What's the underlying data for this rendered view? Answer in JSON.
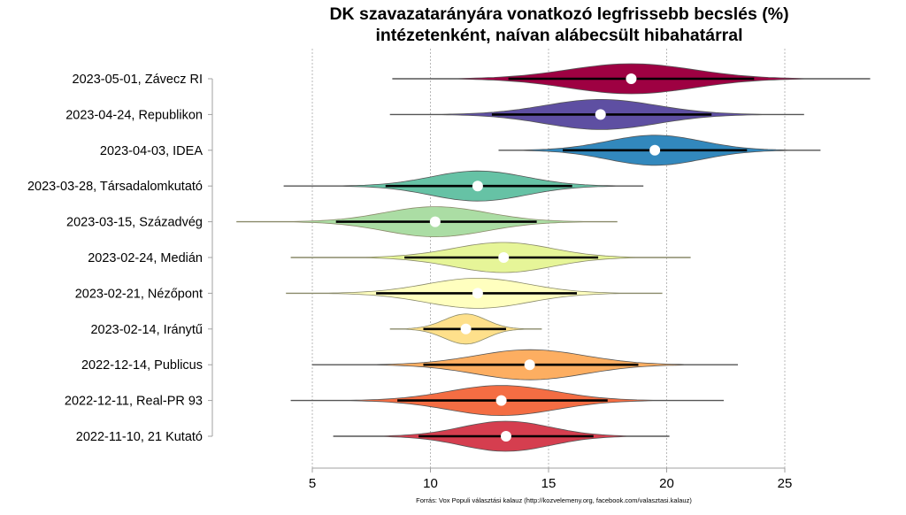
{
  "chart_data": {
    "type": "violin",
    "title": "DK szavazatarányára vonatkozó legfrissebb becslés (%)",
    "subtitle": "intézetenként, naívan alábecsült hibahatárral",
    "xlabel": "",
    "ylabel": "",
    "xlim": [
      5,
      25
    ],
    "xticks": [
      5,
      10,
      15,
      20,
      25
    ],
    "grid": "vertical dashed at x ticks",
    "legend": "none",
    "caption": "Forrás: Vox Populi választási kalauz (http://kozvelemeny.org, facebook.com/valasztasi.kalauz)",
    "series": [
      {
        "label": "2023-05-01, Závecz RI",
        "estimate": 18.5,
        "ci_low": 13.3,
        "ci_high": 23.7,
        "min": 8.4,
        "max": 28.6,
        "color": "#9E0142"
      },
      {
        "label": "2023-04-24, Republikon",
        "estimate": 17.2,
        "ci_low": 12.6,
        "ci_high": 21.9,
        "min": 8.3,
        "max": 25.8,
        "color": "#5E4FA2"
      },
      {
        "label": "2023-04-03, IDEA",
        "estimate": 19.5,
        "ci_low": 15.6,
        "ci_high": 23.4,
        "min": 12.9,
        "max": 26.5,
        "color": "#3288BD"
      },
      {
        "label": "2023-03-28, Társadalomkutató",
        "estimate": 12.0,
        "ci_low": 8.1,
        "ci_high": 16.0,
        "min": 3.8,
        "max": 19.0,
        "color": "#66C2A5"
      },
      {
        "label": "2023-03-15, Századvég",
        "estimate": 10.2,
        "ci_low": 6.0,
        "ci_high": 14.5,
        "min": 1.8,
        "max": 17.9,
        "color": "#ABDDA4"
      },
      {
        "label": "2023-02-24, Medián",
        "estimate": 13.1,
        "ci_low": 8.9,
        "ci_high": 17.1,
        "min": 4.1,
        "max": 21.0,
        "color": "#E6F598"
      },
      {
        "label": "2023-02-21, Nézőpont",
        "estimate": 12.0,
        "ci_low": 7.7,
        "ci_high": 16.2,
        "min": 3.9,
        "max": 19.8,
        "color": "#FFFFBF"
      },
      {
        "label": "2023-02-14, Iránytű",
        "estimate": 11.5,
        "ci_low": 9.7,
        "ci_high": 13.2,
        "min": 8.3,
        "max": 14.7,
        "color": "#FEE08B"
      },
      {
        "label": "2022-12-14, Publicus",
        "estimate": 14.2,
        "ci_low": 9.7,
        "ci_high": 18.8,
        "min": 5.0,
        "max": 23.0,
        "color": "#FDAE61"
      },
      {
        "label": "2022-12-11, Real-PR 93",
        "estimate": 13.0,
        "ci_low": 8.6,
        "ci_high": 17.5,
        "min": 4.1,
        "max": 22.4,
        "color": "#F46D43"
      },
      {
        "label": "2022-11-10, 21 Kutató",
        "estimate": 13.2,
        "ci_low": 9.5,
        "ci_high": 16.9,
        "min": 5.9,
        "max": 20.1,
        "color": "#D53E4F"
      }
    ]
  }
}
